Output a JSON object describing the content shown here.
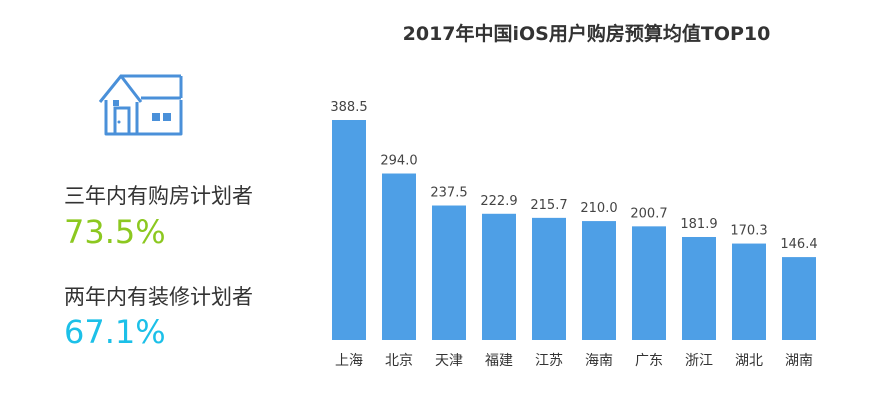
{
  "title": "2017年中国iOS用户购房预算均值TOP10",
  "stats": [
    {
      "label": "三年内有购房计划者",
      "value": "73.5%",
      "color": "#8cc820"
    },
    {
      "label": "两年内有装修计划者",
      "value": "67.1%",
      "color": "#1cc0e8"
    }
  ],
  "icons": {
    "house": "house-icon"
  },
  "colors": {
    "bar": "#4e9fe6",
    "house": "#4a90d9"
  },
  "chart_data": {
    "type": "bar",
    "title": "2017年中国iOS用户购房预算均值TOP10",
    "categories": [
      "上海",
      "北京",
      "天津",
      "福建",
      "江苏",
      "海南",
      "广东",
      "浙江",
      "湖北",
      "湖南"
    ],
    "values": [
      388.5,
      294.0,
      237.5,
      222.9,
      215.7,
      210.0,
      200.7,
      181.9,
      170.3,
      146.4
    ],
    "value_labels": [
      "388.5",
      "294.0",
      "237.5",
      "222.9",
      "215.7",
      "210.0",
      "200.7",
      "181.9",
      "170.3",
      "146.4"
    ],
    "xlabel": "",
    "ylabel": "",
    "ylim": [
      0,
      388.5
    ],
    "grid": false,
    "legend": "none"
  }
}
